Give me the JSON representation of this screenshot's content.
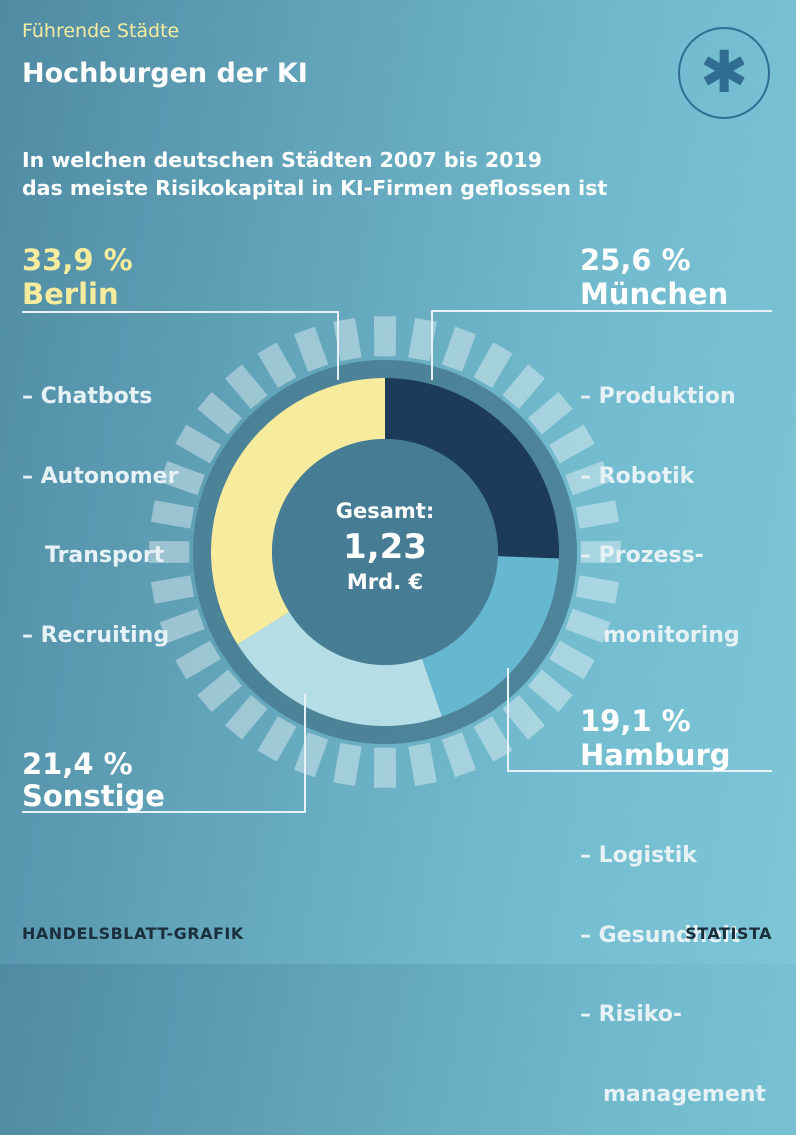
{
  "header": {
    "kicker": "Führende Städte",
    "title": "Hochburgen der KI",
    "subtitle_line1": "In welchen deutschen Städten 2007 bis 2019",
    "subtitle_line2": "das meiste Risikokapital in KI-Firmen geflossen ist",
    "logo_icon": "asterisk-icon"
  },
  "chart_data": {
    "type": "pie",
    "title": "Hochburgen der KI",
    "total_label": "Gesamt:",
    "total_value": "1,23",
    "total_unit": "Mrd. €",
    "slices": [
      {
        "name": "München",
        "value": 25.6,
        "label": "25,6 %",
        "color": "#1b3b58",
        "items": [
          "– Produktion",
          "– Robotik",
          "– Prozess-",
          "   monitoring"
        ]
      },
      {
        "name": "Hamburg",
        "value": 19.1,
        "label": "19,1 %",
        "color": "#66b8d0",
        "items": [
          "– Logistik",
          "– Gesundheit",
          "– Risiko-",
          "   management"
        ]
      },
      {
        "name": "Sonstige",
        "value": 21.4,
        "label": "21,4 %",
        "color": "#b5dde6",
        "items": []
      },
      {
        "name": "Berlin",
        "value": 33.9,
        "label": "33,9 %",
        "color": "#f7ec9e",
        "items": [
          "– Chatbots",
          "– Autonomer",
          "   Transport",
          "– Recruiting"
        ]
      }
    ]
  },
  "footer": {
    "source_left": "HANDELSBLATT-GRAFIK",
    "source_right": "STATISTA"
  },
  "colors": {
    "accent_yellow": "#f7ec9e",
    "dark_blue": "#1b3b58",
    "line": "#e6f2f6"
  }
}
